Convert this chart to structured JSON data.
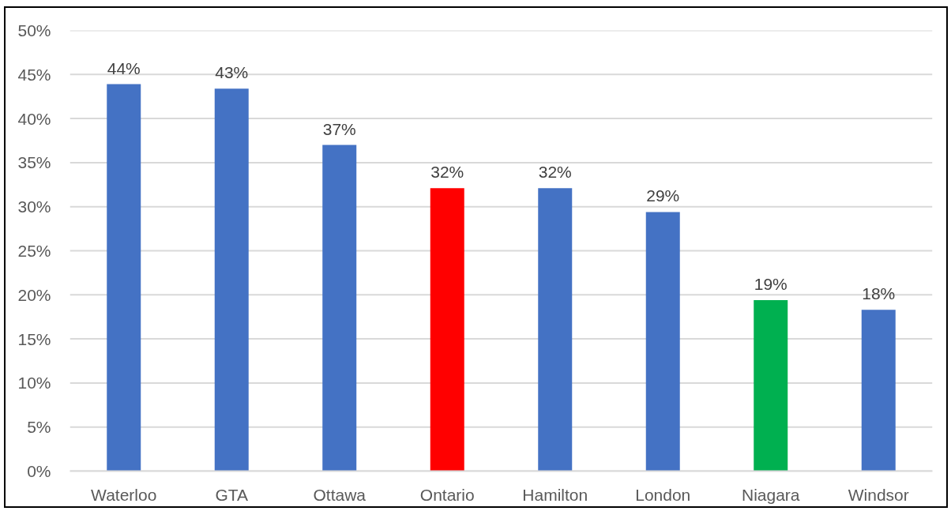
{
  "chart_data": {
    "type": "bar",
    "categories": [
      "Waterloo",
      "GTA",
      "Ottawa",
      "Ontario",
      "Hamilton",
      "London",
      "Niagara",
      "Windsor"
    ],
    "values": [
      43.9,
      43.4,
      37.0,
      32.1,
      32.1,
      29.4,
      19.4,
      18.3
    ],
    "colors": [
      "#4472c4",
      "#4472c4",
      "#4472c4",
      "#ff0000",
      "#4472c4",
      "#4472c4",
      "#00b050",
      "#4472c4"
    ],
    "value_labels": [
      "44%",
      "43%",
      "37%",
      "32%",
      "32%",
      "29%",
      "19%",
      "18%"
    ],
    "ylim": [
      0,
      50
    ],
    "yticks": [
      {
        "value": 0,
        "label": "0%"
      },
      {
        "value": 5,
        "label": "5%"
      },
      {
        "value": 10,
        "label": "10%"
      },
      {
        "value": 15,
        "label": "15%"
      },
      {
        "value": 20,
        "label": "20%"
      },
      {
        "value": 25,
        "label": "25%"
      },
      {
        "value": 30,
        "label": "30%"
      },
      {
        "value": 35,
        "label": "35%"
      },
      {
        "value": 40,
        "label": "40%"
      },
      {
        "value": 45,
        "label": "45%"
      },
      {
        "value": 50,
        "label": "50%"
      }
    ],
    "grid": "y"
  }
}
